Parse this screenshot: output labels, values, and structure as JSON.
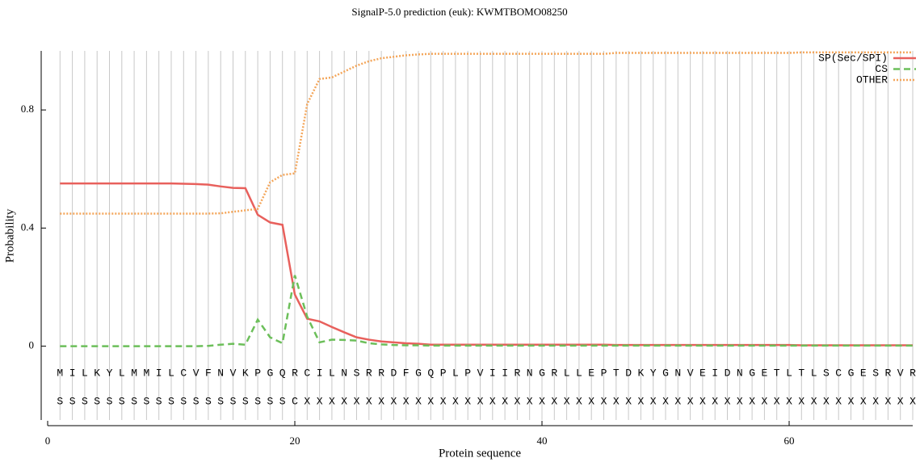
{
  "chart_data": {
    "type": "line",
    "title": "SignalP-5.0 prediction (euk):  KWMTBOMO08250",
    "x_label": "Protein sequence",
    "y_label": "Probability",
    "x": [
      1,
      2,
      3,
      4,
      5,
      6,
      7,
      8,
      9,
      10,
      11,
      12,
      13,
      14,
      15,
      16,
      17,
      18,
      19,
      20,
      21,
      22,
      23,
      24,
      25,
      26,
      27,
      28,
      29,
      30,
      31,
      32,
      33,
      34,
      35,
      36,
      37,
      38,
      39,
      40,
      41,
      42,
      43,
      44,
      45,
      46,
      47,
      48,
      49,
      50,
      51,
      52,
      53,
      54,
      55,
      56,
      57,
      58,
      59,
      60,
      61,
      62,
      63,
      64,
      65,
      66,
      67,
      68,
      69,
      70
    ],
    "sequence": [
      "M",
      "I",
      "L",
      "K",
      "Y",
      "L",
      "M",
      "M",
      "I",
      "L",
      "C",
      "V",
      "F",
      "N",
      "V",
      "K",
      "P",
      "G",
      "Q",
      "R",
      "C",
      "I",
      "L",
      "N",
      "S",
      "R",
      "R",
      "D",
      "F",
      "G",
      "Q",
      "P",
      "L",
      "P",
      "V",
      "I",
      "I",
      "R",
      "N",
      "G",
      "R",
      "L",
      "L",
      "E",
      "P",
      "T",
      "D",
      "K",
      "Y",
      "G",
      "N",
      "V",
      "E",
      "I",
      "D",
      "N",
      "G",
      "E",
      "T",
      "L",
      "T",
      "L",
      "S",
      "C",
      "G",
      "E",
      "S",
      "R",
      "V",
      "R"
    ],
    "labels": [
      "S",
      "S",
      "S",
      "S",
      "S",
      "S",
      "S",
      "S",
      "S",
      "S",
      "S",
      "S",
      "S",
      "S",
      "S",
      "S",
      "S",
      "S",
      "S",
      "C",
      "X",
      "X",
      "X",
      "X",
      "X",
      "X",
      "X",
      "X",
      "X",
      "X",
      "X",
      "X",
      "X",
      "X",
      "X",
      "X",
      "X",
      "X",
      "X",
      "X",
      "X",
      "X",
      "X",
      "X",
      "X",
      "X",
      "X",
      "X",
      "X",
      "X",
      "X",
      "X",
      "X",
      "X",
      "X",
      "X",
      "X",
      "X",
      "X",
      "X",
      "X",
      "X",
      "X",
      "X",
      "X",
      "X",
      "X",
      "X",
      "X",
      "X"
    ],
    "series": [
      {
        "name": "SP(Sec/SPI)",
        "color": "#e8605c",
        "dash": "solid",
        "values": [
          0.551,
          0.551,
          0.551,
          0.551,
          0.551,
          0.551,
          0.551,
          0.551,
          0.551,
          0.551,
          0.55,
          0.549,
          0.547,
          0.541,
          0.536,
          0.535,
          0.445,
          0.419,
          0.411,
          0.175,
          0.093,
          0.084,
          0.065,
          0.047,
          0.03,
          0.022,
          0.016,
          0.013,
          0.01,
          0.008,
          0.005,
          0.005,
          0.005,
          0.005,
          0.005,
          0.005,
          0.005,
          0.005,
          0.005,
          0.005,
          0.005,
          0.005,
          0.005,
          0.005,
          0.005,
          0.004,
          0.004,
          0.004,
          0.004,
          0.004,
          0.004,
          0.004,
          0.004,
          0.004,
          0.004,
          0.004,
          0.004,
          0.004,
          0.004,
          0.004,
          0.003,
          0.003,
          0.003,
          0.003,
          0.003,
          0.003,
          0.003,
          0.003,
          0.003,
          0.003
        ]
      },
      {
        "name": "CS",
        "color": "#6cbf5a",
        "dash": "dashed",
        "values": [
          0,
          0,
          0,
          0,
          0,
          0,
          0,
          0,
          0,
          0,
          0,
          0,
          0.001,
          0.005,
          0.008,
          0.005,
          0.09,
          0.03,
          0.01,
          0.24,
          0.1,
          0.013,
          0.022,
          0.021,
          0.019,
          0.01,
          0.006,
          0.004,
          0.003,
          0.003,
          0.002,
          0.002,
          0.002,
          0.002,
          0.002,
          0.002,
          0.002,
          0.002,
          0.002,
          0.002,
          0.002,
          0.002,
          0.002,
          0.002,
          0.002,
          0.002,
          0.002,
          0.002,
          0.002,
          0.002,
          0.002,
          0.002,
          0.002,
          0.002,
          0.002,
          0.002,
          0.002,
          0.002,
          0.002,
          0.002,
          0.002,
          0.002,
          0.002,
          0.002,
          0.002,
          0.002,
          0.002,
          0.002,
          0.002,
          0.002
        ]
      },
      {
        "name": "OTHER",
        "color": "#f4a65a",
        "dash": "dotted",
        "values": [
          0.449,
          0.449,
          0.449,
          0.449,
          0.449,
          0.449,
          0.449,
          0.449,
          0.449,
          0.449,
          0.449,
          0.449,
          0.449,
          0.45,
          0.455,
          0.46,
          0.465,
          0.555,
          0.58,
          0.585,
          0.82,
          0.905,
          0.91,
          0.93,
          0.95,
          0.965,
          0.975,
          0.98,
          0.985,
          0.988,
          0.99,
          0.99,
          0.99,
          0.99,
          0.99,
          0.99,
          0.99,
          0.99,
          0.99,
          0.99,
          0.99,
          0.99,
          0.99,
          0.99,
          0.99,
          0.993,
          0.993,
          0.993,
          0.993,
          0.993,
          0.993,
          0.993,
          0.993,
          0.993,
          0.993,
          0.993,
          0.993,
          0.993,
          0.993,
          0.993,
          0.995,
          0.995,
          0.995,
          0.995,
          0.995,
          0.995,
          0.995,
          0.995,
          0.995,
          0.995
        ]
      }
    ],
    "xlim": [
      0,
      70
    ],
    "xticks": [
      0,
      20,
      40,
      60
    ],
    "ylim": [
      -0.25,
      1.0
    ],
    "yticks": [
      0,
      0.4,
      0.8
    ],
    "grid": true,
    "legend": "top-right"
  }
}
